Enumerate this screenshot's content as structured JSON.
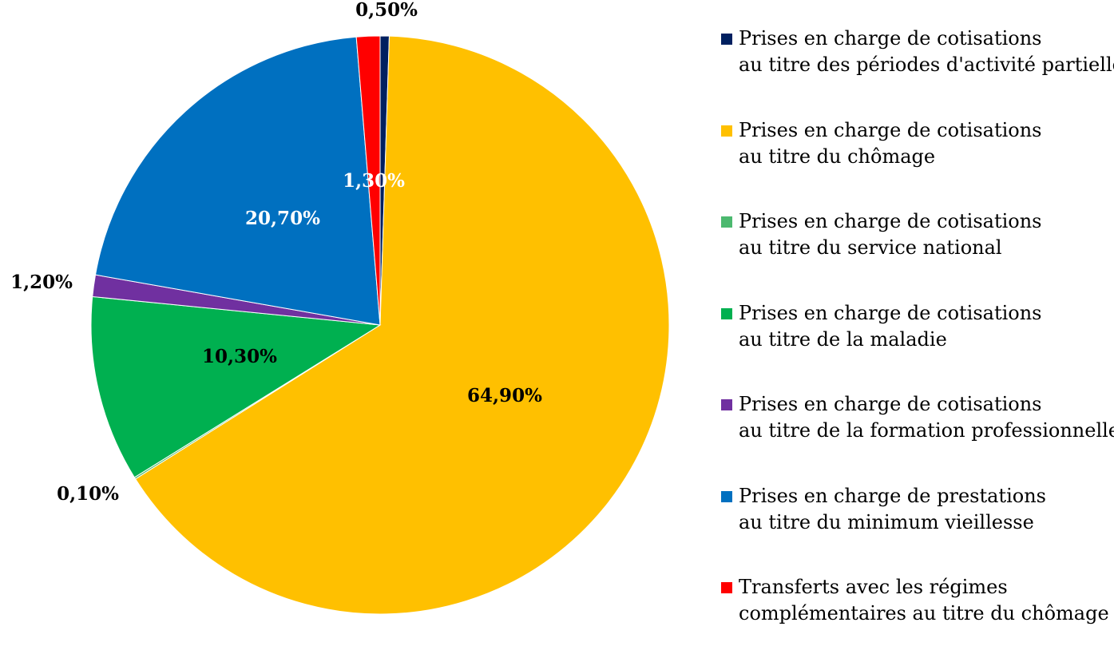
{
  "chart_data": {
    "type": "pie",
    "title": "",
    "series": [
      {
        "name": "Prises en charge de cotisations au titre des périodes d'activité partielle",
        "value": 0.5,
        "label": "0,50%",
        "color": "#002060",
        "legend_lines": [
          "Prises en charge de cotisations",
          "au titre des périodes d'activité partielle"
        ],
        "label_color": "#000000"
      },
      {
        "name": "Prises en charge de cotisations au titre du chômage",
        "value": 64.9,
        "label": "64,90%",
        "color": "#FFC000",
        "legend_lines": [
          "Prises en charge de cotisations",
          "au titre du chômage"
        ],
        "label_color": "#000000"
      },
      {
        "name": "Prises en charge de cotisations au titre du service national",
        "value": 0.1,
        "label": "0,10%",
        "color": "#4CB96F",
        "legend_lines": [
          "Prises en charge de cotisations",
          "au titre du service national"
        ],
        "label_color": "#000000"
      },
      {
        "name": "Prises en charge de cotisations au titre de la maladie",
        "value": 10.3,
        "label": "10,30%",
        "color": "#00B050",
        "legend_lines": [
          "Prises en charge de cotisations",
          "au titre de la maladie"
        ],
        "label_color": "#000000"
      },
      {
        "name": "Prises en charge de cotisations au titre de la formation professionnelle",
        "value": 1.2,
        "label": "1,20%",
        "color": "#7030A0",
        "legend_lines": [
          "Prises en charge de cotisations",
          "au titre de la formation professionnelle"
        ],
        "label_color": "#000000"
      },
      {
        "name": "Prises en charge de prestations au titre du minimum vieillesse",
        "value": 20.7,
        "label": "20,70%",
        "color": "#0070C0",
        "legend_lines": [
          "Prises en charge de prestations",
          "au titre du minimum vieillesse"
        ],
        "label_color": "#FFFFFF"
      },
      {
        "name": "Transferts avec les régimes complémentaires au titre du chômage",
        "value": 1.3,
        "label": "1,30%",
        "color": "#FF0000",
        "legend_lines": [
          "Transferts avec les régimes",
          "complémentaires au titre du chômage"
        ],
        "label_color": "#FFFFFF"
      }
    ],
    "legend_position": "right"
  }
}
